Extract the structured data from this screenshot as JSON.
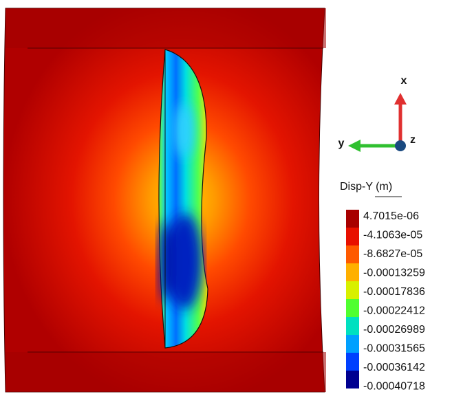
{
  "triad": {
    "x": "x",
    "y": "y",
    "z": "z"
  },
  "colorbar": {
    "title": "Disp-Y (m)",
    "labels": [
      "4.7015e-06",
      "-4.1063e-05",
      "-8.6827e-05",
      "-0.00013259",
      "-0.00017836",
      "-0.00022412",
      "-0.00026989",
      "-0.00031565",
      "-0.00036142",
      "-0.00040718"
    ]
  }
}
